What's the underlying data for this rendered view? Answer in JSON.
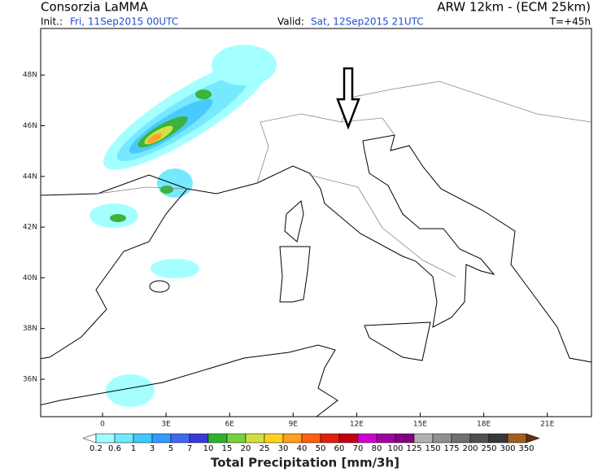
{
  "header": {
    "left_title": "Consorzia LaMMA",
    "model": "ARW 12km - (ECM 25km)",
    "init_label": "Init.:",
    "init_value": "Fri, 11Sep2015 00UTC",
    "valid_label": "Valid:",
    "valid_value": "Sat, 12Sep2015 21UTC",
    "lead": "T=+45h"
  },
  "map": {
    "lat_labels": [
      "36N",
      "38N",
      "40N",
      "42N",
      "44N",
      "46N",
      "48N"
    ],
    "lon_labels": [
      "0",
      "3E",
      "6E",
      "9E",
      "12E",
      "15E",
      "18E",
      "21E"
    ]
  },
  "colorbar": {
    "title": "Total Precipitation [mm/3h]",
    "labels": [
      0.2,
      0.6,
      1,
      3,
      5,
      7,
      10,
      15,
      20,
      25,
      30,
      40,
      50,
      60,
      70,
      80,
      100,
      125,
      150,
      175,
      200,
      250,
      300,
      350
    ],
    "colors": [
      "#ffffff",
      "#a0ffff",
      "#70e8ff",
      "#40c8ff",
      "#3498ff",
      "#4068f0",
      "#3a3ad8",
      "#30b030",
      "#78d040",
      "#d0e040",
      "#ffd020",
      "#ffa020",
      "#ff6010",
      "#e02010",
      "#c00010",
      "#d000d0",
      "#a000a0",
      "#800080",
      "#b0b0b0",
      "#909090",
      "#707070",
      "#505050",
      "#383838",
      "#a06020",
      "#603010"
    ]
  }
}
